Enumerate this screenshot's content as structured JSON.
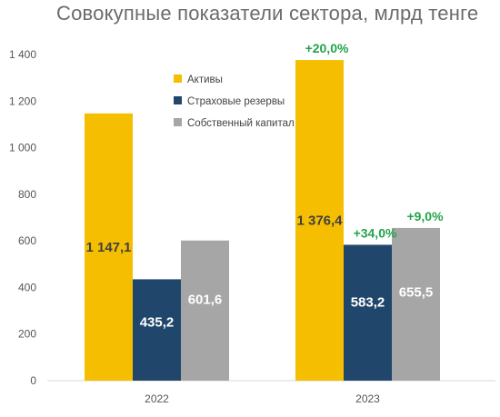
{
  "colors": {
    "assets": "#F5BE00",
    "reserves": "#21466B",
    "equity": "#A6A6A6",
    "growth": "#22A34A",
    "label_dark": "#404040",
    "label_light": "#ffffff"
  },
  "chart_data": {
    "type": "bar",
    "title": "Совокупные показатели сектора, млрд тенге",
    "categories": [
      "2022",
      "2023"
    ],
    "series": [
      {
        "name": "Активы",
        "values": [
          1147.1,
          1376.4
        ],
        "labels": [
          "1 147,1",
          "1 376,4"
        ]
      },
      {
        "name": "Страховые резервы",
        "values": [
          435.2,
          583.2
        ],
        "labels": [
          "435,2",
          "583,2"
        ]
      },
      {
        "name": "Собственный капитал",
        "values": [
          601.6,
          655.5
        ],
        "labels": [
          "601,6",
          "655,5"
        ]
      }
    ],
    "growth_2023": [
      "+20,0%",
      "+34,0%",
      "+9,0%"
    ],
    "yticks": [
      "0",
      "200",
      "400",
      "600",
      "800",
      "1 000",
      "1 200",
      "1 400"
    ],
    "ylim": [
      0,
      1400
    ],
    "grid": false,
    "legend": "top-center"
  }
}
